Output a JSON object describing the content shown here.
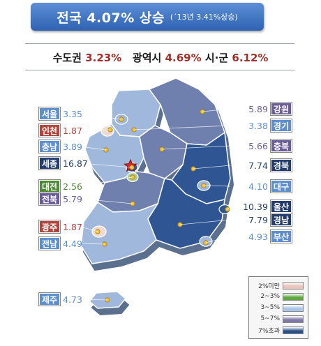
{
  "header": {
    "title": "전국 4.07% 상승",
    "sub": "(´13년 3.41%상승)"
  },
  "summary": {
    "metro_label": "수도권",
    "metro_value": "3.23%",
    "cities_label": "광역시",
    "cities_value": "4.69%",
    "counties_label": "시·군",
    "counties_value": "6.12%"
  },
  "chart_data": {
    "type": "choropleth",
    "unit": "%",
    "regions": [
      {
        "name": "서울",
        "value": "3.35",
        "band": "3~5%"
      },
      {
        "name": "인천",
        "value": "1.87",
        "band": "2%미만"
      },
      {
        "name": "충남",
        "value": "3.89",
        "band": "3~5%"
      },
      {
        "name": "세종",
        "value": "16.87",
        "band": "7%초과"
      },
      {
        "name": "대전",
        "value": "2.56",
        "band": "2~3%"
      },
      {
        "name": "전북",
        "value": "5.79",
        "band": "5~7%"
      },
      {
        "name": "광주",
        "value": "1.87",
        "band": "2%미만"
      },
      {
        "name": "전남",
        "value": "4.49",
        "band": "3~5%"
      },
      {
        "name": "제주",
        "value": "4.73",
        "band": "3~5%"
      },
      {
        "name": "강원",
        "value": "5.89",
        "band": "5~7%"
      },
      {
        "name": "경기",
        "value": "3.38",
        "band": "3~5%"
      },
      {
        "name": "충북",
        "value": "5.66",
        "band": "5~7%"
      },
      {
        "name": "경북",
        "value": "7.74",
        "band": "7%초과"
      },
      {
        "name": "대구",
        "value": "4.10",
        "band": "3~5%"
      },
      {
        "name": "울산",
        "value": "10.39",
        "band": "7%초과"
      },
      {
        "name": "경남",
        "value": "7.79",
        "band": "7%초과"
      },
      {
        "name": "부산",
        "value": "4.93",
        "band": "3~5%"
      }
    ],
    "legend": [
      {
        "label": "2%미만",
        "color": "#e7c3bb"
      },
      {
        "label": "2~3%",
        "color": "#5fa83f"
      },
      {
        "label": "3~5%",
        "color": "#a9c4e6"
      },
      {
        "label": "5~7%",
        "color": "#7f78a6"
      },
      {
        "label": "7%초과",
        "color": "#2a4f86"
      }
    ],
    "band_colors": {
      "2%미만": "#b2453c",
      "2~3%": "#4e8b35",
      "3~5%": "#5d8fcf",
      "5~7%": "#6a5c98",
      "7%초과": "#233e6e"
    },
    "map_colors": {
      "2%미만": "#efd9d3",
      "2~3%": "#a8cf8e",
      "3~5%": "#9fb8dc",
      "5~7%": "#6f7fae",
      "7%초과": "#2f5593"
    }
  }
}
